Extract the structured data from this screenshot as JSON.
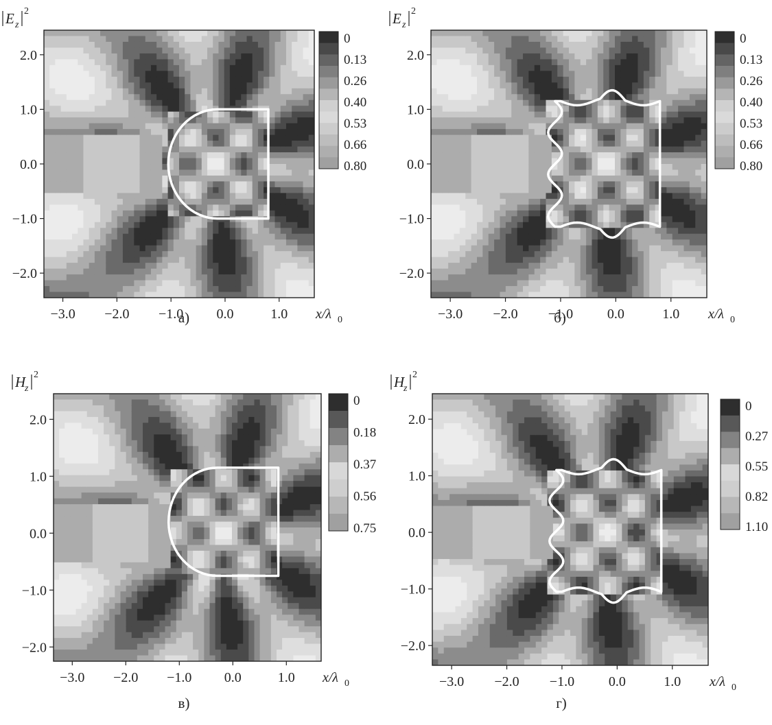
{
  "chart_data": [
    {
      "id": "a",
      "type": "heatmap",
      "panel_label": "а)",
      "quantity": "E",
      "quantity_sub": "z",
      "quantity_sup": "2",
      "xlabel": "x/λ",
      "xlabel_sub": "0",
      "x_ticks": [
        "−3.0",
        "−2.0",
        "−1.0",
        "0.0",
        "1.0"
      ],
      "x_tick_values": [
        -3,
        -2,
        -1,
        0,
        1
      ],
      "y_ticks": [
        "2.0",
        "1.0",
        "0.0",
        "−1.0",
        "−2.0"
      ],
      "y_tick_values": [
        2,
        1,
        0,
        -1,
        -2
      ],
      "xlim": [
        -3.35,
        1.65
      ],
      "ylim": [
        -2.45,
        2.45
      ],
      "colorbar_ticks": [
        "0",
        "0.13",
        "0.26",
        "0.40",
        "0.53",
        "0.66",
        "0.80"
      ],
      "colorbar_values": [
        0,
        0.13,
        0.26,
        0.4,
        0.53,
        0.66,
        0.8
      ],
      "boundary_shape": "d-shape",
      "boundary": {
        "xmin": -1.05,
        "xmax": 0.8,
        "ymin": -1.0,
        "ymax": 1.0
      }
    },
    {
      "id": "b",
      "type": "heatmap",
      "panel_label": "б)",
      "quantity": "E",
      "quantity_sub": "z",
      "quantity_sup": "2",
      "xlabel": "x/λ",
      "xlabel_sub": "0",
      "x_ticks": [
        "−3.0",
        "−2.0",
        "−1.0",
        "0.0",
        "1.0"
      ],
      "x_tick_values": [
        -3,
        -2,
        -1,
        0,
        1
      ],
      "y_ticks": [
        "2.0",
        "1.0",
        "0.0",
        "−1.0",
        "−2.0"
      ],
      "y_tick_values": [
        2,
        1,
        0,
        -1,
        -2
      ],
      "xlim": [
        -3.35,
        1.65
      ],
      "ylim": [
        -2.45,
        2.45
      ],
      "colorbar_ticks": [
        "0",
        "0.13",
        "0.26",
        "0.40",
        "0.53",
        "0.66",
        "0.80"
      ],
      "colorbar_values": [
        0,
        0.13,
        0.26,
        0.4,
        0.53,
        0.66,
        0.8
      ],
      "boundary_shape": "wavy",
      "boundary": {
        "xmin": -1.25,
        "xmax": 0.8,
        "ymin": -1.15,
        "ymax": 1.15
      }
    },
    {
      "id": "v",
      "type": "heatmap",
      "panel_label": "в)",
      "quantity": "H",
      "quantity_sub": "z",
      "quantity_sup": "2",
      "xlabel": "x/λ",
      "xlabel_sub": "0",
      "x_ticks": [
        "−3.0",
        "−2.0",
        "−1.0",
        "0.0",
        "1.0"
      ],
      "x_tick_values": [
        -3,
        -2,
        -1,
        0,
        1
      ],
      "y_ticks": [
        "2.0",
        "1.0",
        "0.0",
        "−1.0",
        "−2.0"
      ],
      "y_tick_values": [
        2,
        1,
        0,
        -1,
        -2
      ],
      "xlim": [
        -3.35,
        1.65
      ],
      "ylim": [
        -2.25,
        2.45
      ],
      "colorbar_ticks": [
        "0",
        "0.18",
        "0.37",
        "0.56",
        "0.75"
      ],
      "colorbar_values": [
        0,
        0.18,
        0.37,
        0.56,
        0.75
      ],
      "boundary_shape": "d-shape",
      "boundary": {
        "xmin": -1.2,
        "xmax": 0.85,
        "ymin": -0.75,
        "ymax": 1.15
      }
    },
    {
      "id": "g",
      "type": "heatmap",
      "panel_label": "г)",
      "quantity": "H",
      "quantity_sub": "z",
      "quantity_sup": "2",
      "xlabel": "x/λ",
      "xlabel_sub": "0",
      "x_ticks": [
        "−3.0",
        "−2.0",
        "−1.0",
        "0.0",
        "1.0"
      ],
      "x_tick_values": [
        -3,
        -2,
        -1,
        0,
        1
      ],
      "y_ticks": [
        "2.0",
        "1.0",
        "0.0",
        "−1.0",
        "−2.0"
      ],
      "y_tick_values": [
        2,
        1,
        0,
        -1,
        -2
      ],
      "xlim": [
        -3.35,
        1.65
      ],
      "ylim": [
        -2.35,
        2.45
      ],
      "colorbar_ticks": [
        "0",
        "0.27",
        "0.55",
        "0.82",
        "1.10"
      ],
      "colorbar_values": [
        0,
        0.27,
        0.55,
        0.82,
        1.1
      ],
      "boundary_shape": "wavy",
      "boundary": {
        "xmin": -1.25,
        "xmax": 0.8,
        "ymin": -1.05,
        "ymax": 1.1
      }
    }
  ],
  "colors": {
    "level_dark": "#2e2e2e",
    "level_light": "#e0e0e0",
    "boundary": "#ffffff",
    "frame": "#222222"
  }
}
